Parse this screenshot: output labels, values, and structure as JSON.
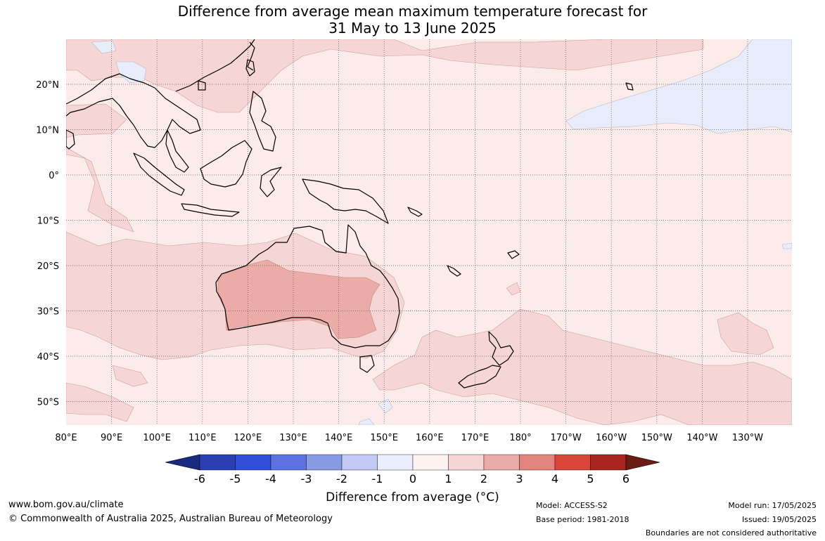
{
  "title": {
    "line1": "Difference from average mean maximum temperature forecast for",
    "line2": "31 May to 13 June 2025"
  },
  "map": {
    "lon_labels": [
      "80°E",
      "90°E",
      "100°E",
      "110°E",
      "120°E",
      "130°E",
      "140°E",
      "150°E",
      "160°E",
      "170°E",
      "180°",
      "170°W",
      "160°W",
      "150°W",
      "140°W",
      "130°W"
    ],
    "lat_labels": [
      "20°N",
      "10°N",
      "0°",
      "10°S",
      "20°S",
      "30°S",
      "40°S",
      "50°S"
    ],
    "palette": {
      "ocean_base": "#fbebe9",
      "anom_1_2": "#f6d6d4",
      "anom_2_3": "#ebaca8",
      "anom_m1_0": "#e8ecfb",
      "coast": "#000000",
      "border": "#888888"
    }
  },
  "colorbar": {
    "labels": [
      "-6",
      "-5",
      "-4",
      "-3",
      "-2",
      "-1",
      "0",
      "1",
      "2",
      "3",
      "4",
      "5",
      "6"
    ],
    "colors": [
      "#1a2a80",
      "#2b3fb3",
      "#2f4fd8",
      "#5c72e0",
      "#8a9be6",
      "#c2c9f2",
      "#eaedfb",
      "#fdf2f0",
      "#f6d6d4",
      "#ebaca8",
      "#e3857e",
      "#d9473a",
      "#a8261f",
      "#6b1a14"
    ],
    "title": "Difference from average (°C)"
  },
  "footer": {
    "url": "www.bom.gov.au/climate",
    "copyright": "© Commonwealth of Australia 2025, Australian Bureau of Meteorology",
    "model": "Model: ACCESS-S2",
    "base_period": "Base period: 1981-2018",
    "model_run": "Model run: 17/05/2025",
    "issued": "Issued: 19/05/2025",
    "disclaimer": "Boundaries are not considered authoritative"
  }
}
